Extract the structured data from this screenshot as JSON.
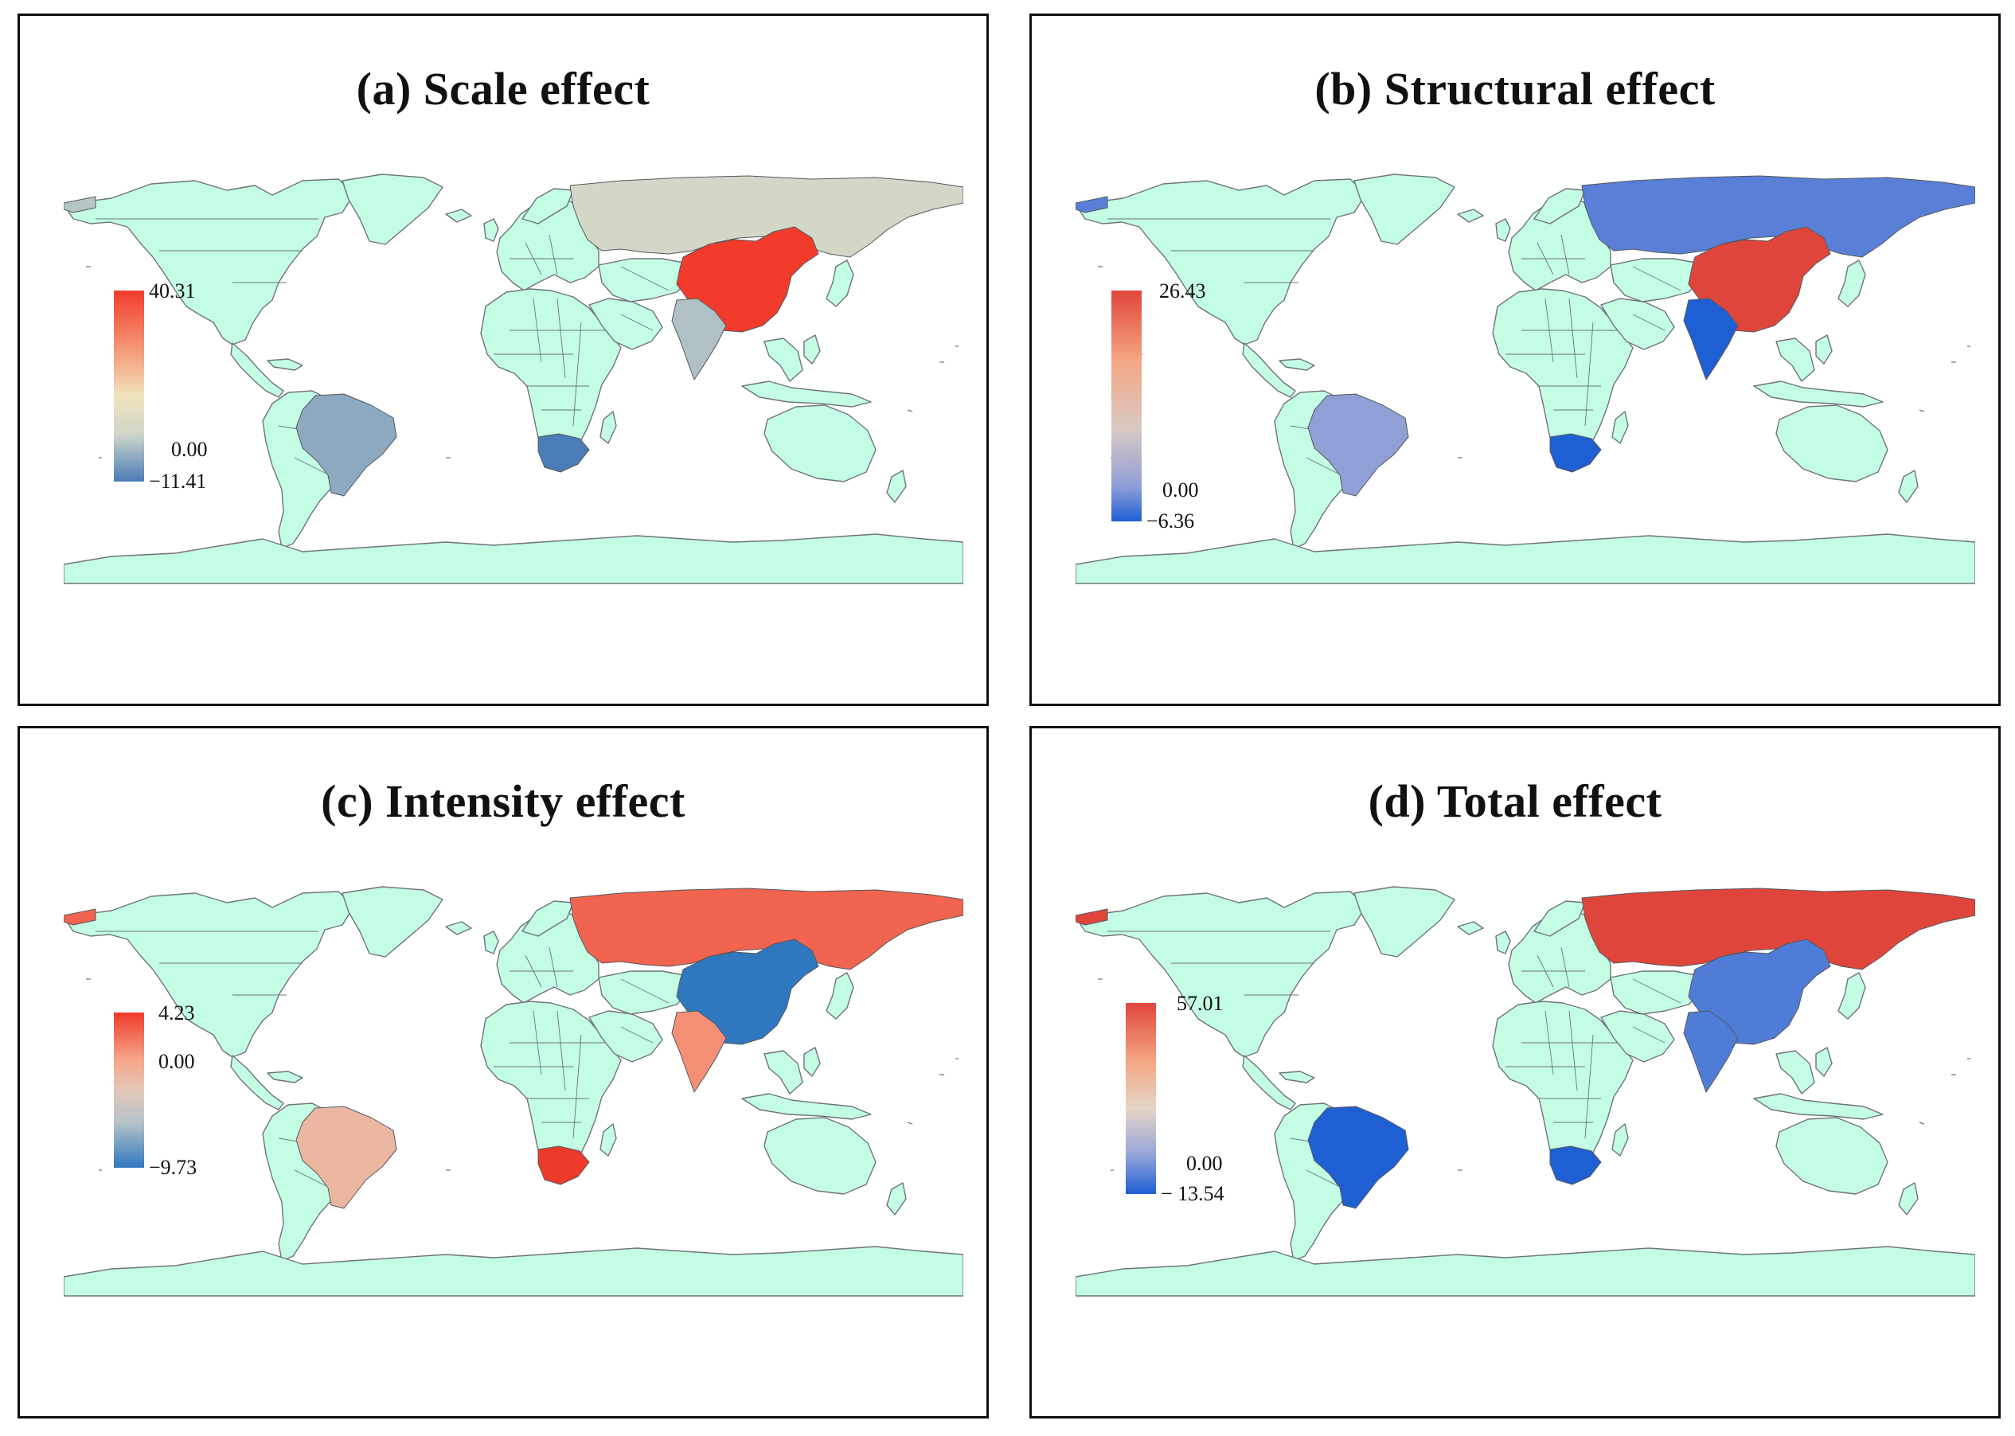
{
  "panels": [
    {
      "id": "a",
      "title": "(a) Scale effect",
      "colorbar": {
        "max_label": "40.31",
        "mid_label": "0.00",
        "min_label": "−11.41",
        "max": 40.31,
        "min": -11.41,
        "stops": [
          [
            "0",
            "#f33b2c"
          ],
          [
            "0.35",
            "#f4a582"
          ],
          [
            "0.55",
            "#f1e3bd"
          ],
          [
            "0.75",
            "#cfd6c9"
          ],
          [
            "1",
            "#4a7db6"
          ]
        ]
      },
      "regions": {
        "russia": 2.5,
        "china": 40.31,
        "india": -1.5,
        "brazil": -5.0,
        "south_africa": -11.41,
        "alaska": -1.0
      }
    },
    {
      "id": "b",
      "title": "(b) Structural effect",
      "colorbar": {
        "max_label": "26.43",
        "mid_label": "0.00",
        "min_label": "−6.36",
        "max": 26.43,
        "min": -6.36,
        "stops": [
          [
            "0",
            "#e0453c"
          ],
          [
            "0.3",
            "#f4a582"
          ],
          [
            "0.6",
            "#d9c9c3"
          ],
          [
            "0.85",
            "#8f9ed8"
          ],
          [
            "1",
            "#1f5fd4"
          ]
        ]
      },
      "regions": {
        "russia": -3.8,
        "china": 26.43,
        "india": -6.36,
        "brazil": -1.2,
        "south_africa": -6.36,
        "alaska": -3.8
      }
    },
    {
      "id": "c",
      "title": "(c) Intensity effect",
      "colorbar": {
        "max_label": "4.23",
        "mid_label": "0.00",
        "min_label": "−9.73",
        "max": 4.23,
        "min": -9.73,
        "stops": [
          [
            "0",
            "#ee3a2a"
          ],
          [
            "0.3",
            "#f6a589"
          ],
          [
            "0.5",
            "#e3c7b8"
          ],
          [
            "0.7",
            "#b9c4c8"
          ],
          [
            "1",
            "#2f78c0"
          ]
        ]
      },
      "regions": {
        "russia": 2.6,
        "china": -9.73,
        "india": 0.9,
        "brazil": -1.4,
        "south_africa": 4.23,
        "alaska": 2.6
      }
    },
    {
      "id": "d",
      "title": "(d) Total effect",
      "colorbar": {
        "max_label": "57.01",
        "mid_label": "0.00",
        "min_label": "− 13.54",
        "max": 57.01,
        "min": -13.54,
        "stops": [
          [
            "0",
            "#e0453c"
          ],
          [
            "0.3",
            "#f4a582"
          ],
          [
            "0.55",
            "#e6d5c6"
          ],
          [
            "0.78",
            "#9ba9da"
          ],
          [
            "1",
            "#1f5fd4"
          ]
        ]
      },
      "regions": {
        "russia": 57.01,
        "china": -7.5,
        "india": -7.5,
        "brazil": -13.54,
        "south_africa": -13.54,
        "alaska": 57.01
      }
    }
  ],
  "colors": {
    "land": "#c3fde4",
    "border": "#6f7378",
    "frame": "#111111"
  }
}
